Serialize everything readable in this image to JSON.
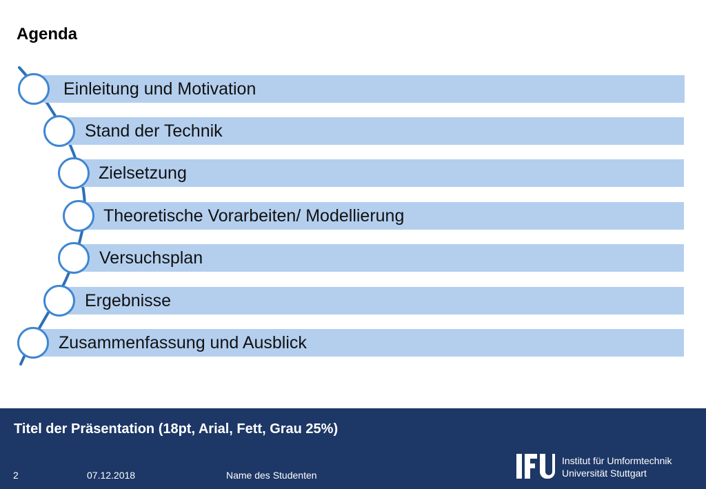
{
  "slide": {
    "title": "Agenda"
  },
  "agenda": {
    "items": [
      {
        "label": "Einleitung und Motivation"
      },
      {
        "label": "Stand der Technik"
      },
      {
        "label": "Zielsetzung"
      },
      {
        "label": "Theoretische Vorarbeiten/ Modellierung"
      },
      {
        "label": "Versuchsplan"
      },
      {
        "label": "Ergebnisse"
      },
      {
        "label": "Zusammenfassung und Ausblick"
      }
    ],
    "colors": {
      "bar": "#b4cfee",
      "circle_border": "#3f86d2",
      "curve": "#2e6fb6"
    }
  },
  "footer": {
    "presentation_title": "Titel der Präsentation (18pt, Arial, Fett, Grau 25%)",
    "page_number": "2",
    "date": "07.12.2018",
    "student_name": "Name des Studenten",
    "logo_text": "IFU",
    "institute_line1": "Institut für Umformtechnik",
    "institute_line2": "Universität Stuttgart",
    "background_color": "#1d3766"
  }
}
